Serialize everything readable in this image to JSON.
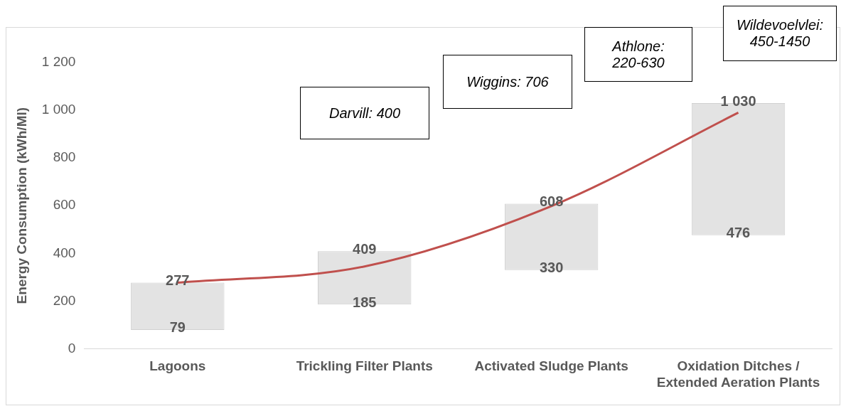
{
  "chart_data": {
    "type": "bar",
    "ylabel": "Energy Consumption (kWh/Ml)",
    "categories": [
      "Lagoons",
      "Trickling Filter Plants",
      "Activated Sludge Plants",
      "Oxidation Ditches / Extended Aeration Plants"
    ],
    "ylim": [
      0,
      1200
    ],
    "yticks": [
      0,
      200,
      400,
      600,
      800,
      {
        "value": 1000,
        "label": "1 000"
      },
      {
        "value": 1200,
        "label": "1 200"
      }
    ],
    "grid": false,
    "legend": false,
    "series": [
      {
        "color": "#e3e3e3",
        "values": [
          198,
          224,
          278,
          554
        ],
        "base": [
          79,
          185,
          330,
          476
        ]
      },
      {
        "type": "line",
        "color": "#c0504d",
        "values": [
          277,
          345,
          598,
          990
        ],
        "marker": "none"
      }
    ],
    "annotations": [
      "Darvill: 400",
      "Wiggins: 706",
      "Athlone: 220-630",
      "Wildevoelvlei: 450-1450",
      {
        "text": "277",
        "x": "Lagoons",
        "y": 277
      },
      {
        "text": "79",
        "x": "Lagoons",
        "y": 79
      },
      {
        "text": "409",
        "x": "Trickling Filter Plants",
        "y": 409
      },
      {
        "text": "185",
        "x": "Trickling Filter Plants",
        "y": 185
      },
      {
        "text": "608",
        "x": "Activated Sludge Plants",
        "y": 608
      },
      {
        "text": "330",
        "x": "Activated Sludge Plants",
        "y": 330
      },
      {
        "text": "1 030",
        "x": "Oxidation Ditches / Extended Aeration Plants",
        "y": 1030
      },
      {
        "text": "476",
        "x": "Oxidation Ditches / Extended Aeration Plants",
        "y": 476
      }
    ]
  }
}
